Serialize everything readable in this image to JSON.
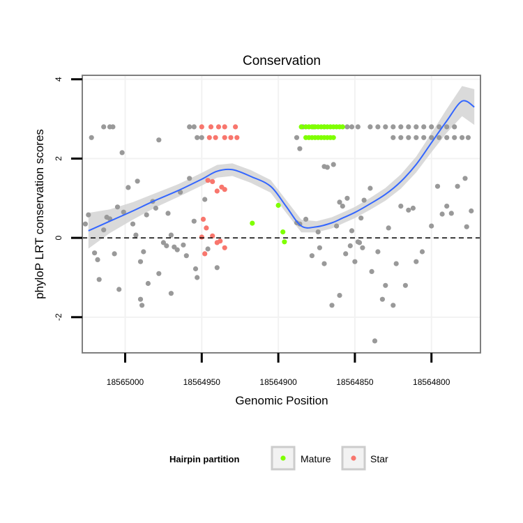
{
  "chart_data": {
    "type": "scatter",
    "title": "Conservation",
    "xlabel": "Genomic Position",
    "ylabel": "phyloP LRT conservation scores",
    "xlim": [
      18565028,
      18564768
    ],
    "x_reversed": true,
    "ylim": [
      -2.9,
      4.1
    ],
    "x_ticks": [
      18565000,
      18564950,
      18564900,
      18564850,
      18564800
    ],
    "x_tick_labels": [
      "18565000",
      "18564950",
      "18564900",
      "18564850",
      "18564800"
    ],
    "y_ticks": [
      -2,
      0,
      2,
      4
    ],
    "y_tick_labels": [
      "-2",
      "0",
      "2",
      "4"
    ],
    "reference_line": {
      "y": 0,
      "style": "dashed"
    },
    "legend": {
      "title": "Hairpin partition",
      "position": "bottom",
      "entries": [
        {
          "label": "Mature",
          "color": "#7FFF00"
        },
        {
          "label": "Star",
          "color": "#F8766D"
        }
      ]
    },
    "colors": {
      "other": "#999999",
      "mature": "#7FFF00",
      "star": "#F8766D",
      "smooth": "#3366FF",
      "band": "#D3D3D3"
    },
    "smooth": {
      "x": [
        18565024,
        18565010,
        18564995,
        18564980,
        18564965,
        18564950,
        18564940,
        18564930,
        18564918,
        18564905,
        18564895,
        18564885,
        18564875,
        18564865,
        18564858,
        18564850,
        18564840,
        18564830,
        18564820,
        18564810,
        18564800,
        18564790,
        18564780,
        18564772
      ],
      "y": [
        0.18,
        0.42,
        0.68,
        0.95,
        1.2,
        1.48,
        1.68,
        1.72,
        1.55,
        1.3,
        0.8,
        0.3,
        0.28,
        0.38,
        0.5,
        0.64,
        0.86,
        1.1,
        1.42,
        1.85,
        2.4,
        2.95,
        3.45,
        3.3
      ],
      "band_halfwidth": [
        0.45,
        0.3,
        0.22,
        0.18,
        0.16,
        0.16,
        0.16,
        0.16,
        0.16,
        0.16,
        0.16,
        0.16,
        0.14,
        0.14,
        0.14,
        0.14,
        0.15,
        0.16,
        0.18,
        0.2,
        0.24,
        0.3,
        0.38,
        0.45
      ]
    },
    "series": [
      {
        "name": "Other",
        "points": [
          [
            18565022,
            2.53
          ],
          [
            18565014,
            2.8
          ],
          [
            18565010,
            2.8
          ],
          [
            18565008,
            2.8
          ],
          [
            18565002,
            2.15
          ],
          [
            18564998,
            1.27
          ],
          [
            18564992,
            1.43
          ],
          [
            18564990,
            -0.6
          ],
          [
            18564978,
            2.47
          ],
          [
            18564970,
            0.07
          ],
          [
            18564958,
            2.8
          ],
          [
            18564955,
            2.8
          ],
          [
            18564953,
            2.53
          ],
          [
            18564950,
            2.53
          ],
          [
            18564886,
            2.25
          ],
          [
            18564888,
            2.53
          ],
          [
            18564884,
            2.8
          ],
          [
            18564870,
            2.8
          ],
          [
            18564855,
            2.8
          ],
          [
            18564852,
            2.8
          ],
          [
            18564848,
            2.8
          ],
          [
            18564840,
            2.8
          ],
          [
            18564835,
            2.8
          ],
          [
            18564830,
            2.8
          ],
          [
            18564825,
            2.8
          ],
          [
            18564820,
            2.8
          ],
          [
            18564815,
            2.8
          ],
          [
            18564810,
            2.8
          ],
          [
            18564805,
            2.8
          ],
          [
            18564800,
            2.8
          ],
          [
            18564795,
            2.8
          ],
          [
            18564790,
            2.8
          ],
          [
            18564785,
            2.8
          ],
          [
            18564825,
            2.53
          ],
          [
            18564820,
            2.53
          ],
          [
            18564815,
            2.53
          ],
          [
            18564810,
            2.53
          ],
          [
            18564805,
            2.53
          ],
          [
            18564800,
            2.53
          ],
          [
            18564795,
            2.53
          ],
          [
            18564790,
            2.53
          ],
          [
            18564785,
            2.53
          ],
          [
            18564780,
            2.53
          ],
          [
            18564776,
            2.53
          ],
          [
            18565026,
            0.35
          ],
          [
            18565024,
            0.58
          ],
          [
            18565020,
            -0.38
          ],
          [
            18565018,
            -0.55
          ],
          [
            18565017,
            -1.05
          ],
          [
            18565014,
            0.2
          ],
          [
            18565012,
            0.52
          ],
          [
            18565010,
            0.48
          ],
          [
            18565007,
            -0.4
          ],
          [
            18565005,
            0.78
          ],
          [
            18565004,
            -1.3
          ],
          [
            18565001,
            0.65
          ],
          [
            18564995,
            0.35
          ],
          [
            18564993,
            0.07
          ],
          [
            18564990,
            -1.55
          ],
          [
            18564989,
            -1.7
          ],
          [
            18564988,
            -0.35
          ],
          [
            18564986,
            0.58
          ],
          [
            18564985,
            -1.15
          ],
          [
            18564982,
            0.92
          ],
          [
            18564980,
            0.75
          ],
          [
            18564978,
            -0.9
          ],
          [
            18564975,
            -0.12
          ],
          [
            18564973,
            -0.2
          ],
          [
            18564972,
            0.62
          ],
          [
            18564970,
            -1.4
          ],
          [
            18564968,
            -0.23
          ],
          [
            18564966,
            -0.3
          ],
          [
            18564964,
            1.15
          ],
          [
            18564962,
            -0.18
          ],
          [
            18564960,
            -0.45
          ],
          [
            18564958,
            1.5
          ],
          [
            18564955,
            0.42
          ],
          [
            18564954,
            -0.78
          ],
          [
            18564953,
            -1.0
          ],
          [
            18564948,
            0.97
          ],
          [
            18564946,
            -0.28
          ],
          [
            18564940,
            -0.75
          ],
          [
            18564888,
            0.38
          ],
          [
            18564886,
            0.35
          ],
          [
            18564882,
            0.47
          ],
          [
            18564878,
            -0.45
          ],
          [
            18564877,
            2.8
          ],
          [
            18564874,
            0.15
          ],
          [
            18564873,
            -0.25
          ],
          [
            18564870,
            -0.65
          ],
          [
            18564870,
            1.8
          ],
          [
            18564868,
            1.78
          ],
          [
            18564865,
            -1.7
          ],
          [
            18564864,
            1.85
          ],
          [
            18564862,
            0.3
          ],
          [
            18564860,
            -1.45
          ],
          [
            18564860,
            0.9
          ],
          [
            18564858,
            0.8
          ],
          [
            18564856,
            -0.4
          ],
          [
            18564855,
            1.0
          ],
          [
            18564853,
            -0.2
          ],
          [
            18564852,
            0.18
          ],
          [
            18564850,
            -0.6
          ],
          [
            18564848,
            -0.1
          ],
          [
            18564847,
            -0.12
          ],
          [
            18564846,
            0.5
          ],
          [
            18564845,
            -0.25
          ],
          [
            18564844,
            0.95
          ],
          [
            18564840,
            1.25
          ],
          [
            18564839,
            -0.85
          ],
          [
            18564837,
            -2.6
          ],
          [
            18564835,
            -0.35
          ],
          [
            18564832,
            -1.55
          ],
          [
            18564830,
            -1.2
          ],
          [
            18564828,
            0.25
          ],
          [
            18564825,
            -1.7
          ],
          [
            18564823,
            -0.65
          ],
          [
            18564820,
            0.8
          ],
          [
            18564817,
            -1.2
          ],
          [
            18564815,
            0.7
          ],
          [
            18564812,
            0.75
          ],
          [
            18564810,
            -0.6
          ],
          [
            18564806,
            -0.35
          ],
          [
            18564800,
            0.3
          ],
          [
            18564796,
            1.3
          ],
          [
            18564793,
            0.6
          ],
          [
            18564790,
            0.8
          ],
          [
            18564787,
            0.62
          ],
          [
            18564783,
            1.3
          ],
          [
            18564778,
            1.5
          ],
          [
            18564777,
            0.28
          ],
          [
            18564774,
            0.68
          ]
        ]
      },
      {
        "name": "Mature",
        "points": [
          [
            18564885,
            2.8
          ],
          [
            18564882,
            2.8
          ],
          [
            18564880,
            2.8
          ],
          [
            18564878,
            2.8
          ],
          [
            18564876,
            2.8
          ],
          [
            18564874,
            2.8
          ],
          [
            18564872,
            2.8
          ],
          [
            18564870,
            2.8
          ],
          [
            18564868,
            2.8
          ],
          [
            18564866,
            2.8
          ],
          [
            18564864,
            2.8
          ],
          [
            18564862,
            2.8
          ],
          [
            18564860,
            2.8
          ],
          [
            18564858,
            2.8
          ],
          [
            18564882,
            2.53
          ],
          [
            18564880,
            2.53
          ],
          [
            18564878,
            2.53
          ],
          [
            18564876,
            2.53
          ],
          [
            18564874,
            2.53
          ],
          [
            18564872,
            2.53
          ],
          [
            18564870,
            2.53
          ],
          [
            18564868,
            2.53
          ],
          [
            18564866,
            2.53
          ],
          [
            18564864,
            2.53
          ],
          [
            18564917,
            0.37
          ],
          [
            18564900,
            0.82
          ],
          [
            18564897,
            0.15
          ],
          [
            18564896,
            -0.1
          ]
        ]
      },
      {
        "name": "Star",
        "points": [
          [
            18564950,
            2.8
          ],
          [
            18564944,
            2.8
          ],
          [
            18564939,
            2.8
          ],
          [
            18564935,
            2.8
          ],
          [
            18564928,
            2.8
          ],
          [
            18564945,
            2.53
          ],
          [
            18564941,
            2.53
          ],
          [
            18564935,
            2.53
          ],
          [
            18564931,
            2.53
          ],
          [
            18564927,
            2.53
          ],
          [
            18564946,
            1.45
          ],
          [
            18564943,
            1.42
          ],
          [
            18564940,
            1.18
          ],
          [
            18564937,
            1.28
          ],
          [
            18564935,
            1.22
          ],
          [
            18564949,
            0.47
          ],
          [
            18564947,
            0.25
          ],
          [
            18564950,
            0.02
          ],
          [
            18564948,
            -0.4
          ],
          [
            18564943,
            0.05
          ],
          [
            18564940,
            -0.12
          ],
          [
            18564938,
            -0.08
          ],
          [
            18564935,
            -0.25
          ]
        ]
      }
    ]
  }
}
